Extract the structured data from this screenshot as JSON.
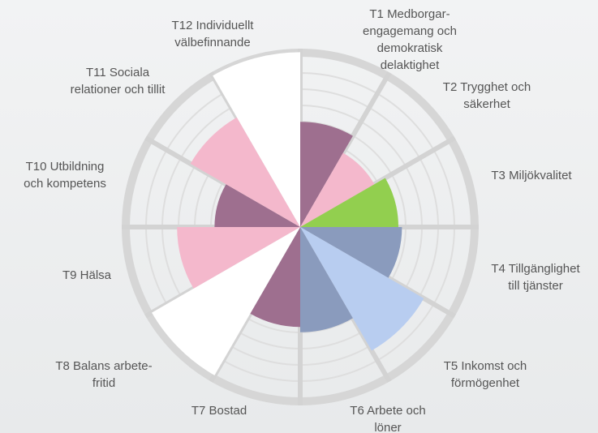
{
  "chart_data": {
    "type": "polar_area",
    "categories": [
      [
        "T1 Medborgar-",
        "engagemang och",
        "demokratisk",
        "delaktighet"
      ],
      [
        "T2 Trygghet och",
        "säkerhet"
      ],
      [
        "T3 Miljökvalitet"
      ],
      [
        "T4 Tillgänglighet",
        "till tjänster"
      ],
      [
        "T5 Inkomst och",
        "förmögenhet"
      ],
      [
        "T6 Arbete och",
        "löner"
      ],
      [
        "T7 Bostad"
      ],
      [
        "T8 Balans arbete-",
        "fritid"
      ],
      [
        "T9 Hälsa"
      ],
      [
        "T10 Utbildning",
        "och kompetens"
      ],
      [
        "T11 Sociala",
        "relationer och tillit"
      ],
      [
        "T12 Individuellt",
        "välbefinnande"
      ]
    ],
    "values": [
      59,
      48,
      55,
      57,
      80,
      59,
      56,
      96,
      69,
      48,
      71,
      98
    ],
    "colors": [
      "#9e6f8f",
      "#f4b8cc",
      "#92cf4f",
      "#8a9bbd",
      "#b8cdf0",
      "#8a9bbd",
      "#9e6f8f",
      "#ffffff",
      "#f4b8cc",
      "#9e6f8f",
      "#f4b8cc",
      "#ffffff"
    ],
    "ylim": [
      0,
      100
    ]
  }
}
